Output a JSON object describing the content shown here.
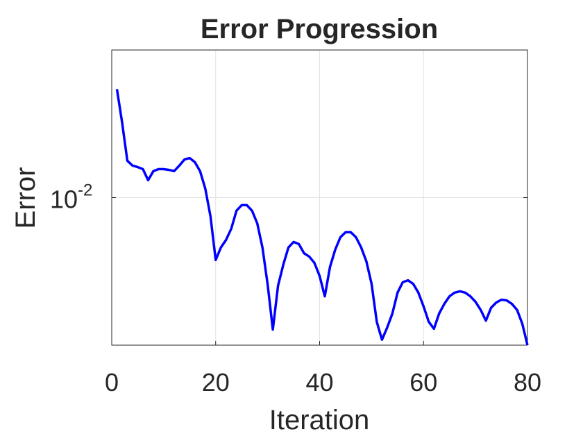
{
  "chart_data": {
    "type": "line",
    "title": "Error Progression",
    "xlabel": "Iteration",
    "ylabel": "Error",
    "x": [
      1,
      2,
      3,
      4,
      5,
      6,
      7,
      8,
      9,
      10,
      11,
      12,
      13,
      14,
      15,
      16,
      17,
      18,
      19,
      20,
      21,
      22,
      23,
      24,
      25,
      26,
      27,
      28,
      29,
      30,
      31,
      32,
      33,
      34,
      35,
      36,
      37,
      38,
      39,
      40,
      41,
      42,
      43,
      44,
      45,
      46,
      47,
      48,
      49,
      50,
      51,
      52,
      53,
      54,
      55,
      56,
      57,
      58,
      59,
      60,
      61,
      62,
      63,
      64,
      65,
      66,
      67,
      68,
      69,
      70,
      71,
      72,
      73,
      74,
      75,
      76,
      77,
      78,
      79,
      80
    ],
    "series": [
      {
        "name": "Error",
        "color": "#0000ff",
        "values": [
          0.01664,
          0.01422,
          0.01189,
          0.01162,
          0.01154,
          0.01143,
          0.01085,
          0.01132,
          0.01143,
          0.01143,
          0.01139,
          0.01132,
          0.01162,
          0.01196,
          0.01204,
          0.01181,
          0.01132,
          0.01043,
          0.00916,
          0.00746,
          0.00791,
          0.0082,
          0.00864,
          0.0094,
          0.00965,
          0.00965,
          0.0094,
          0.00886,
          0.00791,
          0.00665,
          0.00538,
          0.00661,
          0.00729,
          0.00791,
          0.00812,
          0.00804,
          0.0077,
          0.00758,
          0.00736,
          0.00692,
          0.00629,
          0.00722,
          0.00783,
          0.0083,
          0.0085,
          0.0085,
          0.0083,
          0.00791,
          0.00741,
          0.00667,
          0.00558,
          0.00513,
          0.00543,
          0.0058,
          0.0064,
          0.00672,
          0.00678,
          0.00667,
          0.0064,
          0.006,
          0.00558,
          0.0054,
          0.0058,
          0.00607,
          0.00629,
          0.0064,
          0.00644,
          0.0064,
          0.00629,
          0.00613,
          0.0059,
          0.00561,
          0.00596,
          0.00611,
          0.00619,
          0.00617,
          0.00607,
          0.0059,
          0.00553,
          0.005
        ]
      }
    ],
    "xlim": [
      0,
      80
    ],
    "xticks": [
      0,
      20,
      40,
      60,
      80
    ],
    "ylim": [
      0.005,
      0.02
    ],
    "yscale": "log",
    "yticks": [
      {
        "value": 0.01,
        "label": "10",
        "exponent": "-2"
      }
    ],
    "grid": true
  }
}
